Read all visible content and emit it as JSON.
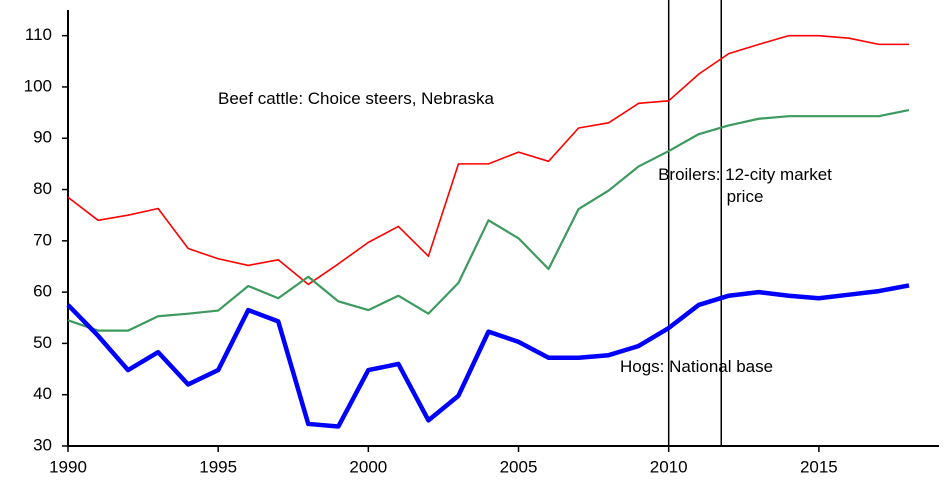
{
  "chart_data": {
    "type": "line",
    "x": [
      1990,
      1991,
      1992,
      1993,
      1994,
      1995,
      1996,
      1997,
      1998,
      1999,
      2000,
      2001,
      2002,
      2003,
      2004,
      2005,
      2006,
      2007,
      2008,
      2009,
      2010,
      2011,
      2012,
      2013,
      2014,
      2015,
      2016,
      2017,
      2018
    ],
    "series": [
      {
        "name": "Beef cattle: Choice steers, Nebraska",
        "color": "#ff0000",
        "values": [
          78.5,
          74,
          75,
          76.3,
          68.5,
          66.5,
          65.2,
          66.3,
          61.5,
          65.5,
          69.7,
          72.8,
          67,
          85,
          85,
          87.3,
          85.5,
          92,
          93,
          96.8,
          97.3,
          102.5,
          106.5,
          108.3,
          110,
          110,
          109.5,
          108.3,
          108.3
        ]
      },
      {
        "name": "Broilers: 12-city market price",
        "color": "#3c9a5f",
        "values": [
          54.5,
          52.5,
          52.5,
          55.3,
          55.8,
          56.4,
          61.2,
          58.8,
          63,
          58.2,
          56.5,
          59.3,
          55.8,
          61.8,
          74,
          70.5,
          64.5,
          76.2,
          79.8,
          84.5,
          87.5,
          90.8,
          92.5,
          93.8,
          94.3,
          94.3,
          94.3,
          94.3,
          95.5
        ]
      },
      {
        "name": "Hogs: National base",
        "color": "#0000ff",
        "values": [
          57.5,
          51.5,
          44.8,
          48.3,
          42,
          44.8,
          56.5,
          54.3,
          34.3,
          33.8,
          44.8,
          46,
          35,
          39.8,
          52.3,
          50.3,
          47.2,
          47.2,
          47.7,
          49.5,
          53,
          57.5,
          59.3,
          60,
          59.3,
          58.8,
          59.5,
          60.2,
          61.3
        ]
      }
    ],
    "xlim": [
      1990,
      2019
    ],
    "xticks": [
      1990,
      1995,
      2000,
      2005,
      2010,
      2015
    ],
    "ylim": [
      30,
      115
    ],
    "yticks": [
      30,
      40,
      50,
      60,
      70,
      80,
      90,
      100,
      110
    ],
    "vlines": [
      2010,
      2011.75
    ]
  }
}
